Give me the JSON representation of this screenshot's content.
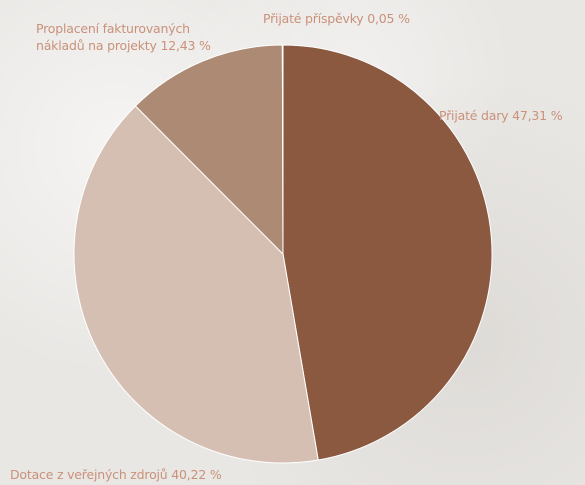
{
  "chart_data": {
    "type": "pie",
    "title": "",
    "slices": [
      {
        "name": "Přijaté dary",
        "value": 47.31,
        "label": "Přijaté dary 47,31 %",
        "color": "#8b5840"
      },
      {
        "name": "Dotace z veřejných zdrojů",
        "value": 40.22,
        "label": "Dotace z veřejných zdrojů 40,22 %",
        "color": "#d5bfb3"
      },
      {
        "name": "Proplacení fakturovaných nákladů na projekty",
        "value": 12.43,
        "label": "Proplacení fakturovaných nákladů na projekty 12,43 %",
        "color": "#ad8a74"
      },
      {
        "name": "Přijaté příspěvky",
        "value": 0.05,
        "label": "Přijaté příspěvky 0,05 %",
        "color": "#8b5840"
      }
    ],
    "start_angle_deg": 0,
    "direction": "clockwise",
    "legend": "none"
  },
  "labels": {
    "contributions": "Přijaté příspěvky 0,05 %",
    "donations": "Přijaté dary 47,31 %",
    "costs_line1": "Proplacení fakturovaných",
    "costs_line2": "nákladů na projekty 12,43 %",
    "public": "Dotace z veřejných zdrojů 40,22 %"
  }
}
